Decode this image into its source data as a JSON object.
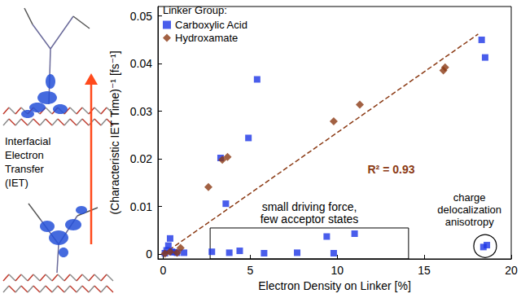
{
  "chart_data": {
    "type": "scatter",
    "xlabel": "Electron Density on Linker [%]",
    "ylabel": "(Characteristic IET Time)⁻¹ [fs⁻¹]",
    "xlim": [
      -0.3,
      20
    ],
    "xticks": [
      0,
      5,
      10,
      15,
      20
    ],
    "ylim": [
      -0.001,
      0.052
    ],
    "yticks": [
      0,
      0.01,
      0.02,
      0.03,
      0.04,
      0.05
    ],
    "grid": false,
    "legend": "upper left",
    "legend_title": "Linker Group:",
    "series": [
      {
        "name": "Carboxylic Acid",
        "color": "#1c34e6",
        "marker": "square",
        "x": [
          18.3,
          18.5,
          5.4,
          4.9,
          3.3,
          3.6,
          0.4,
          0.3,
          0.5,
          0.8,
          0.2,
          1.2,
          0.1,
          0.6,
          2.8,
          3.8,
          4.4,
          5.8,
          7.7,
          9.4,
          9.8,
          11.0,
          18.4,
          18.6
        ],
        "values": [
          0.045,
          0.0413,
          0.0367,
          0.0244,
          0.0202,
          0.0106,
          0.0033,
          0.0018,
          0.0005,
          0.0003,
          0.0008,
          0.0003,
          0.0002,
          0.0004,
          0.0005,
          0.0003,
          0.0007,
          0.0002,
          0.0003,
          0.0037,
          0.0002,
          0.0043,
          0.0015,
          0.0019
        ]
      },
      {
        "name": "Hydroxamate",
        "color": "#8b3a14",
        "marker": "diamond",
        "x": [
          0.1,
          0.4,
          0.8,
          1.0,
          2.6,
          3.4,
          3.7,
          9.8,
          11.3,
          16.1,
          16.2
        ],
        "values": [
          0.0001,
          0.0005,
          0.0003,
          0.0013,
          0.0141,
          0.0198,
          0.0204,
          0.0279,
          0.0314,
          0.0386,
          0.0392
        ]
      },
      {
        "type": "line",
        "line_style": "dashed",
        "color": "#8b3a14",
        "x": [
          0,
          18.1
        ],
        "values": [
          0,
          0.0462
        ]
      }
    ],
    "annotations": [
      {
        "text": [
          "R² = 0.93"
        ],
        "x": 13.1,
        "y": 0.0178,
        "color": "#8b3a14"
      },
      {
        "text": [
          "small driving force,",
          "few acceptor states"
        ],
        "x": 8.4,
        "y": 0.0087,
        "box": {
          "x": [
            2.7,
            14.1
          ],
          "y": [
            -0.001,
            0.0055
          ]
        }
      },
      {
        "text": [
          "charge",
          "delocalization",
          "anisotropy"
        ],
        "x": 17.6,
        "y": 0.0094,
        "circle": [
          18.5,
          0.0017
        ]
      }
    ],
    "diagram": {
      "label": [
        "Interfacial",
        "Electron",
        "Transfer",
        "(IET)"
      ]
    }
  }
}
